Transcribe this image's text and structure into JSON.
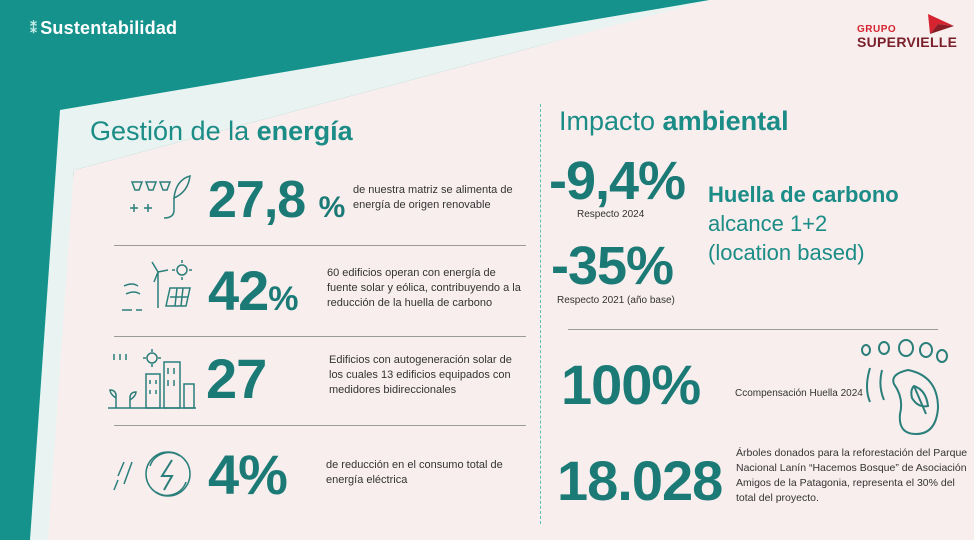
{
  "header": {
    "brand": "Sustentabilidad",
    "logo_grupo": "GRUPO",
    "logo_name": "SUPERVIELLE"
  },
  "left": {
    "title_prefix": "Gestión de la ",
    "title_bold": "energía",
    "items": [
      {
        "value": "27,8",
        "unit": "%",
        "text": "de nuestra matriz se alimenta de energía de origen renovable"
      },
      {
        "value": "42",
        "unit": "%",
        "text": "60 edificios operan con energía de fuente solar y eólica, contribuyendo a la reducción de la huella de carbono"
      },
      {
        "value": "27",
        "unit": "",
        "text": "Edificios con autogeneración solar de los cuales  13 edificios equipados con medidores bidireccionales"
      },
      {
        "value": "4",
        "unit": "%",
        "text": "de reducción en el consumo total de energía eléctrica"
      }
    ]
  },
  "right": {
    "title_prefix": "Impacto ",
    "title_bold": "ambiental",
    "carbon": [
      {
        "value": "-9,4%",
        "note": "Respecto 2024"
      },
      {
        "value": "-35%",
        "note": "Respecto 2021 (año base)"
      }
    ],
    "huella_title": "Huella de carbono",
    "huella_line2": "alcance 1+2",
    "huella_line3": "(location based)",
    "compensation_value": "100%",
    "compensation_text": "Ccompensación Huella  2024",
    "trees_value": "18.028",
    "trees_text": "Árboles donados para la reforestación del Parque Nacional Lanín “Hacemos Bosque” de Asociación Amigos de la Patagonia, representa el 30% del total del proyecto."
  },
  "colors": {
    "teal": "#1b8c86",
    "dark_teal": "#1b7a75",
    "background_panel": "#f8eeee",
    "brand_red": "#d5232f"
  }
}
